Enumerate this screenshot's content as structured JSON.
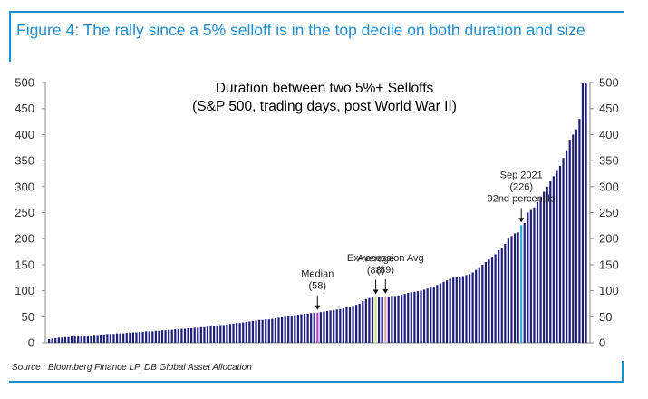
{
  "figure": {
    "title": "Figure 4: The rally since a 5% selloff is in the top decile on both duration and size",
    "source": "Source : Bloomberg Finance LP, DB Global Asset Allocation"
  },
  "colors": {
    "accent": "#1d8fd1",
    "bar": "#1f1f7a",
    "median": "#c23fc9",
    "average": "#cfe07a",
    "ex_recession": "#e8a0a8",
    "current": "#37a9e0"
  },
  "chart_data": {
    "type": "bar",
    "title": "Duration between two 5%+ Selloffs",
    "subtitle": "(S&P 500, trading days, post World War II)",
    "xlabel": "",
    "ylabel": "",
    "ylim": [
      0,
      500
    ],
    "yticks": [
      "0",
      "50",
      "100",
      "150",
      "200",
      "250",
      "300",
      "350",
      "400",
      "450",
      "500"
    ],
    "values": [
      7,
      8,
      9,
      10,
      10,
      11,
      11,
      12,
      12,
      12,
      13,
      13,
      14,
      14,
      15,
      15,
      16,
      16,
      17,
      17,
      17,
      18,
      18,
      18,
      19,
      19,
      20,
      20,
      21,
      21,
      22,
      22,
      22,
      23,
      23,
      24,
      24,
      25,
      25,
      26,
      26,
      27,
      27,
      28,
      28,
      29,
      29,
      30,
      30,
      31,
      32,
      33,
      33,
      34,
      34,
      35,
      36,
      37,
      38,
      38,
      39,
      40,
      41,
      42,
      43,
      44,
      44,
      45,
      45,
      46,
      47,
      48,
      49,
      50,
      51,
      52,
      53,
      54,
      55,
      56,
      56,
      57,
      57,
      58,
      59,
      60,
      61,
      62,
      63,
      64,
      65,
      66,
      68,
      69,
      71,
      73,
      75,
      80,
      84,
      86,
      87,
      88,
      88,
      88,
      89,
      89,
      90,
      90,
      91,
      92,
      94,
      96,
      97,
      98,
      99,
      100,
      102,
      104,
      106,
      108,
      111,
      114,
      117,
      120,
      123,
      125,
      126,
      127,
      128,
      130,
      132,
      135,
      140,
      145,
      150,
      155,
      160,
      165,
      170,
      178,
      182,
      190,
      200,
      205,
      210,
      212,
      226,
      230,
      250,
      255,
      260,
      270,
      280,
      290,
      300,
      310,
      320,
      330,
      340,
      355,
      370,
      390,
      400,
      410,
      430,
      500,
      500
    ],
    "highlights": [
      {
        "index": 83,
        "role": "median"
      },
      {
        "index": 101,
        "role": "average"
      },
      {
        "index": 104,
        "role": "ex_recession"
      },
      {
        "index": 146,
        "role": "current"
      }
    ],
    "annotations": [
      {
        "index": 83,
        "value": 58,
        "lines": [
          "Median",
          "(58)"
        ]
      },
      {
        "index": 101,
        "value": 88,
        "lines": [
          "Average",
          "(88)"
        ]
      },
      {
        "index": 104,
        "value": 89,
        "lines": [
          "Ex-recession Avg",
          "(89)"
        ]
      },
      {
        "index": 146,
        "value": 226,
        "lines": [
          "Sep 2021",
          "(226)",
          "92nd percentile"
        ]
      }
    ]
  }
}
